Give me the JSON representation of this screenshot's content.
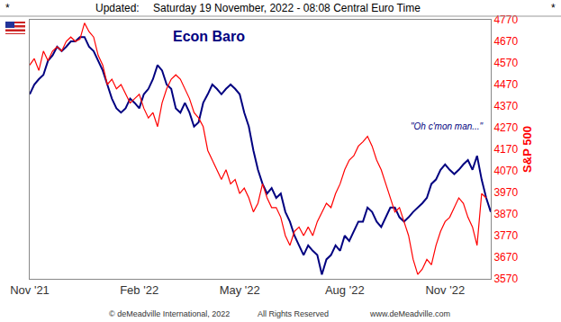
{
  "chart_data": {
    "type": "line",
    "title": "Econ Baro",
    "header": [
      "*",
      "Updated:",
      "Saturday 19 November, 2022 - 08:08 Central Euro Time",
      "*"
    ],
    "footer": [
      "© deMeadville International, 2022",
      "All Rights Reserved",
      "www.deMeadville.com"
    ],
    "annotations": [
      "\"Oh c'mon man...\""
    ],
    "y_label": "S&P 500",
    "grid": false,
    "categories": [
      "Nov '21",
      null,
      null,
      null,
      null,
      null,
      null,
      null,
      null,
      null,
      null,
      null,
      null,
      null,
      null,
      null,
      null,
      null,
      null,
      null,
      null,
      null,
      null,
      null,
      "Feb '22",
      null,
      null,
      null,
      null,
      null,
      null,
      null,
      null,
      null,
      null,
      null,
      null,
      null,
      null,
      null,
      null,
      null,
      null,
      null,
      null,
      null,
      "May '22",
      null,
      null,
      null,
      null,
      null,
      null,
      null,
      null,
      null,
      null,
      null,
      null,
      null,
      null,
      null,
      null,
      null,
      null,
      null,
      null,
      null,
      null,
      "Aug '22",
      null,
      null,
      null,
      null,
      null,
      null,
      null,
      null,
      null,
      null,
      null,
      null,
      null,
      null,
      null,
      null,
      null,
      null,
      null,
      null,
      null,
      "Nov '22",
      null,
      null,
      null,
      null,
      null,
      null,
      null,
      null,
      null,
      null
    ],
    "series": [
      {
        "name": "Econ Baro",
        "color": "#000080",
        "values": [
          4425,
          4470,
          4495,
          4515,
          4580,
          4605,
          4645,
          4625,
          4645,
          4670,
          4670,
          4690,
          4690,
          4645,
          4625,
          4580,
          4535,
          4470,
          4405,
          4360,
          4340,
          4360,
          4405,
          4385,
          4360,
          4425,
          4450,
          4495,
          4560,
          4535,
          4470,
          4450,
          4360,
          4340,
          4385,
          4340,
          4275,
          4295,
          4385,
          4425,
          4470,
          4450,
          4425,
          4450,
          4470,
          4450,
          4425,
          4340,
          4275,
          4165,
          4075,
          4010,
          3965,
          3990,
          3945,
          3965,
          3880,
          3835,
          3770,
          3725,
          3680,
          3725,
          3700,
          3680,
          3590,
          3660,
          3680,
          3725,
          3700,
          3770,
          3745,
          3790,
          3835,
          3835,
          3900,
          3880,
          3835,
          3810,
          3855,
          3900,
          3900,
          3855,
          3835,
          3855,
          3880,
          3900,
          3920,
          3945,
          4010,
          4030,
          4075,
          4100,
          4075,
          4055,
          4075,
          4100,
          4120,
          4075,
          4140,
          4030,
          3945,
          3880
        ]
      },
      {
        "name": "S&P 500",
        "color": "#ff0000",
        "values": [
          4560,
          4590,
          4535,
          4625,
          4580,
          4625,
          4645,
          4625,
          4670,
          4690,
          4670,
          4680,
          4755,
          4715,
          4690,
          4605,
          4560,
          4470,
          4495,
          4450,
          4470,
          4425,
          4385,
          4405,
          4425,
          4360,
          4315,
          4340,
          4275,
          4385,
          4450,
          4495,
          4515,
          4495,
          4450,
          4405,
          4340,
          4315,
          4275,
          4165,
          4120,
          4075,
          4030,
          4075,
          4010,
          4030,
          3965,
          3990,
          3945,
          3880,
          3920,
          4010,
          3945,
          3900,
          3900,
          3855,
          3770,
          3725,
          3790,
          3810,
          3770,
          3810,
          3770,
          3835,
          3880,
          3920,
          3900,
          3965,
          4010,
          4075,
          4120,
          4140,
          4185,
          4205,
          4230,
          4185,
          4120,
          4075,
          4010,
          3945,
          3880,
          3900,
          3835,
          3770,
          3660,
          3590,
          3615,
          3660,
          3635,
          3725,
          3790,
          3835,
          3855,
          3900,
          3945,
          3920,
          3855,
          3810,
          3725,
          3965,
          3945,
          null
        ]
      }
    ],
    "ylim": [
      3570,
      4770
    ],
    "yticks": [
      3570,
      3670,
      3770,
      3870,
      3970,
      4070,
      4170,
      4270,
      4370,
      4470,
      4570,
      4670,
      4770
    ]
  }
}
